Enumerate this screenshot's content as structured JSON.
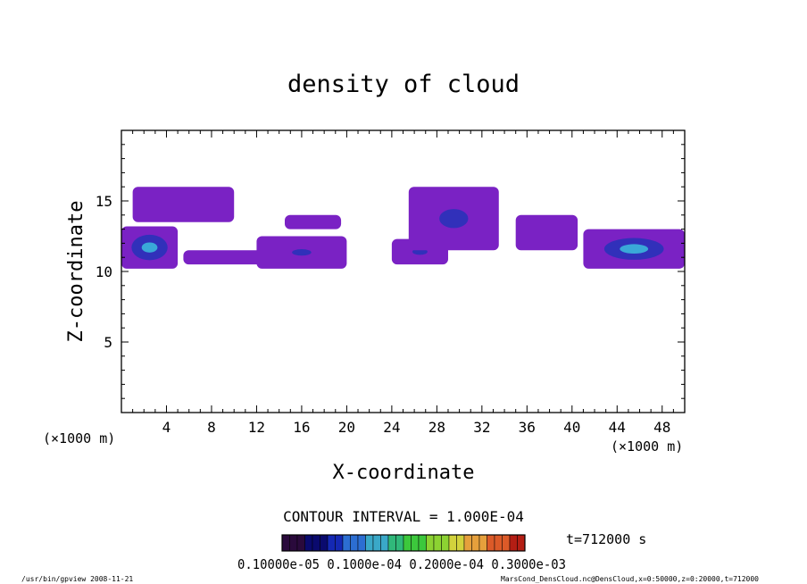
{
  "chart_data": {
    "type": "heatmap",
    "title": "density of cloud",
    "xlabel": "X-coordinate",
    "ylabel": "Z-coordinate",
    "x_unit_left": "(×1000 m)",
    "x_unit_right": "(×1000 m)",
    "xlim": [
      0,
      50
    ],
    "ylim": [
      0,
      20
    ],
    "x_ticks": [
      4,
      8,
      12,
      16,
      20,
      24,
      28,
      32,
      36,
      40,
      44,
      48
    ],
    "y_ticks": [
      5,
      10,
      15
    ],
    "contour_interval_text": "CONTOUR INTERVAL = 1.000E-04",
    "time_text": "t=712000 s",
    "colorbar_labels_text": "0.10000e-05 0.1000e-04 0.2000e-04 0.3000e-03",
    "colorbar": {
      "levels": 32,
      "colors": [
        "#2a0a3c",
        "#0a0a6e",
        "#1428b4",
        "#2c6ed2",
        "#3aa8c8",
        "#30b87a",
        "#3cc83c",
        "#8cd232",
        "#d2d23c",
        "#e6a03c",
        "#dc5a28",
        "#b41e14"
      ]
    },
    "regions": [
      {
        "x": [
          1.0,
          10.0
        ],
        "z": [
          13.5,
          16.0
        ],
        "value": 2e-05
      },
      {
        "x": [
          0.0,
          5.0
        ],
        "z": [
          10.2,
          13.2
        ],
        "value": 0.00012
      },
      {
        "x": [
          5.5,
          12.5
        ],
        "z": [
          10.5,
          11.5
        ],
        "value": 2e-05
      },
      {
        "x": [
          12.0,
          20.0
        ],
        "z": [
          10.2,
          12.5
        ],
        "value": 4e-05
      },
      {
        "x": [
          14.5,
          19.5
        ],
        "z": [
          13.0,
          14.0
        ],
        "value": 2e-05
      },
      {
        "x": [
          24.0,
          29.0
        ],
        "z": [
          10.5,
          12.3
        ],
        "value": 5e-05
      },
      {
        "x": [
          25.5,
          33.5
        ],
        "z": [
          11.5,
          16.0
        ],
        "value": 6e-05
      },
      {
        "x": [
          35.0,
          40.5
        ],
        "z": [
          11.5,
          14.0
        ],
        "value": 3e-05
      },
      {
        "x": [
          41.0,
          50.0
        ],
        "z": [
          10.2,
          13.0
        ],
        "value": 0.00011
      }
    ]
  },
  "footer": {
    "left": "/usr/bin/gpview   2008-11-21",
    "right": "MarsCond_DensCloud.nc@DensCloud,x=0:50000,z=0:20000,t=712000"
  }
}
